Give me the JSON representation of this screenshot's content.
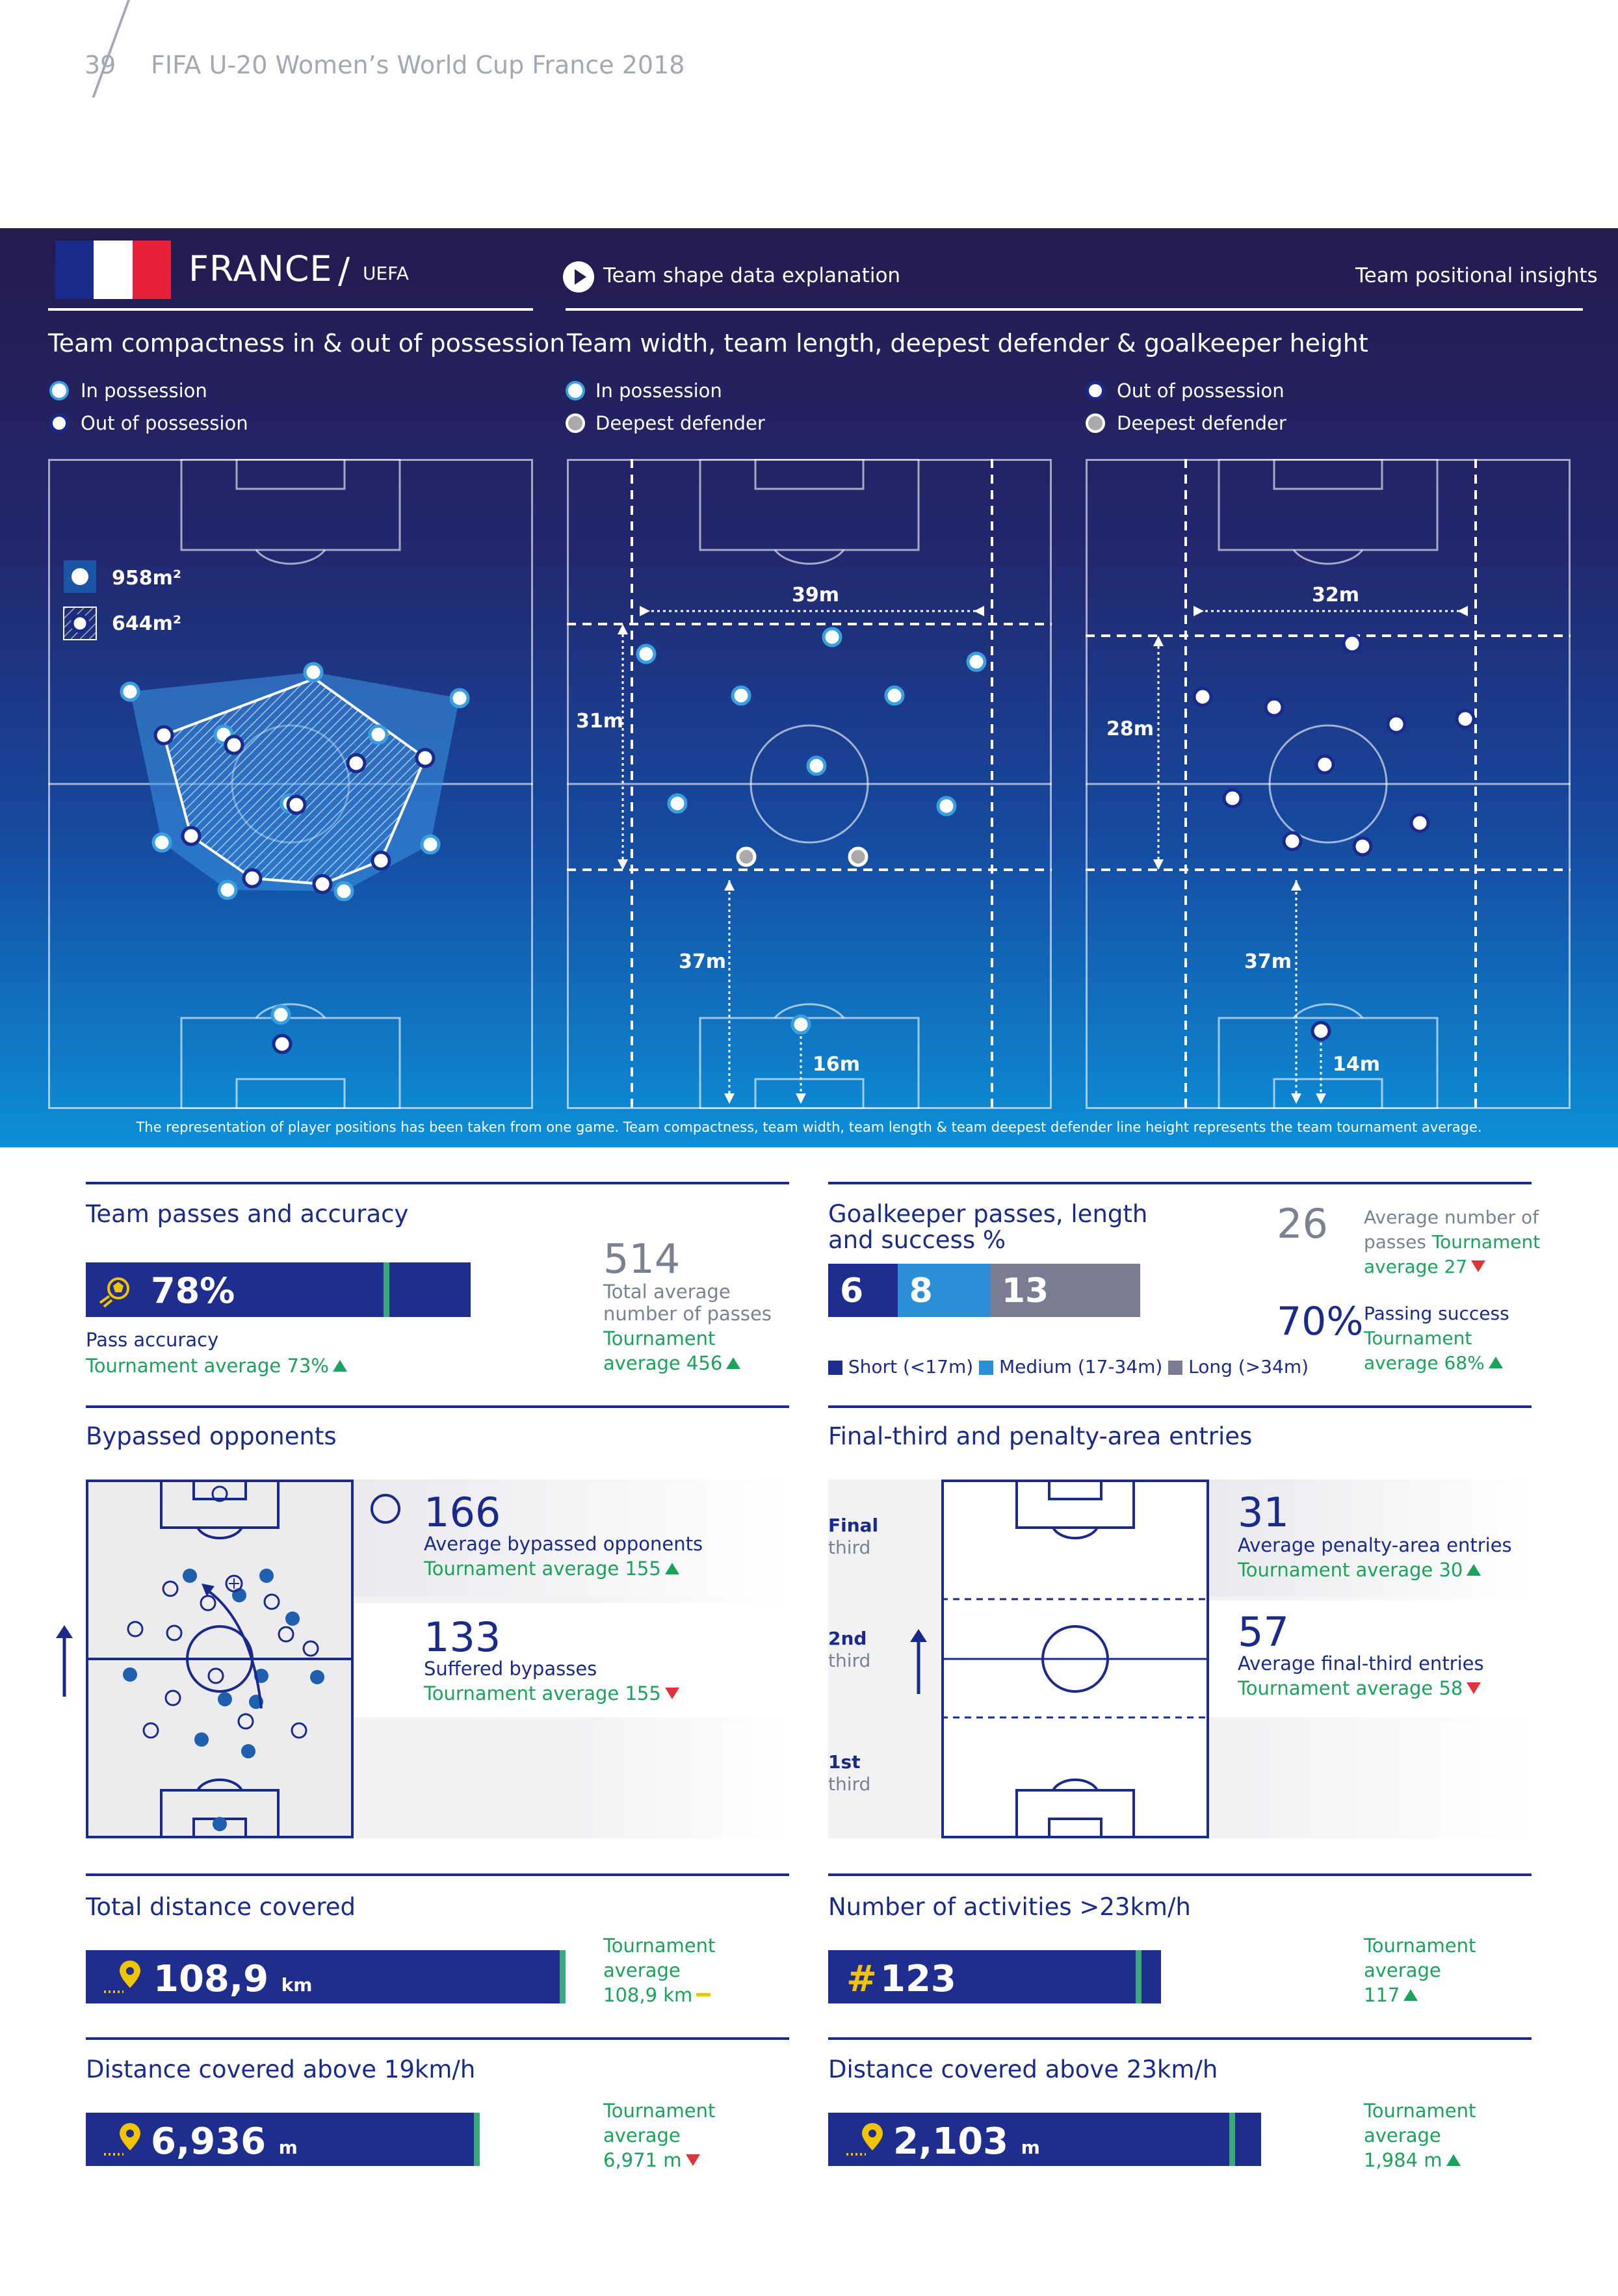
{
  "header": {
    "page_number": "39",
    "title": "FIFA U-20 Women’s World Cup France 2018"
  },
  "team": {
    "name": "FRANCE",
    "confederation": "UEFA",
    "flag_colors": [
      "#1a2a8c",
      "#ffffff",
      "#e8213a"
    ]
  },
  "links": {
    "shape_explanation": "Team shape data explanation",
    "positional_insights": "Team positional insights"
  },
  "panels": {
    "compactness": {
      "title": "Team compactness in & out of possession",
      "legend_in": "In possession",
      "legend_out": "Out of possession",
      "in_area": "958m²",
      "out_area": "644m²"
    },
    "shape": {
      "title": "Team width, team length, deepest defender & goalkeeper height",
      "legend_in": "In possession",
      "legend_out": "Out of possession",
      "legend_deepest": "Deepest defender",
      "in": {
        "width": "39m",
        "length": "31m",
        "deepest_height": "37m",
        "gk_height": "16m"
      },
      "out": {
        "width": "32m",
        "length": "28m",
        "deepest_height": "37m",
        "gk_height": "14m"
      }
    },
    "footnote": "The representation of player positions has been taken from one game. Team compactness, team width, team length & team deepest defender line height represents the team tournament average."
  },
  "passes": {
    "title": "Team passes and accuracy",
    "accuracy": "78%",
    "accuracy_value": 78,
    "accuracy_label": "Pass accuracy",
    "accuracy_avg": "Tournament average 73%",
    "total": "514",
    "total_label_1": "Total average",
    "total_label_2": "number of passes",
    "total_avg_1": "Tournament",
    "total_avg_2": "average 456"
  },
  "goalkeeper": {
    "title_1": "Goalkeeper passes, length",
    "title_2": "and success %",
    "short": "6",
    "medium": "8",
    "long": "13",
    "legend_short": "Short (<17m)",
    "legend_medium": "Medium (17-34m)",
    "legend_long": "Long (>34m)",
    "avg_passes": "26",
    "avg_passes_label_1": "Average number of",
    "avg_passes_label_2": "passes",
    "avg_passes_tour": "Tournament",
    "avg_passes_tour_2": "average 27",
    "success": "70%",
    "success_label": "Passing success",
    "success_tour_1": "Tournament",
    "success_tour_2": "average 68%"
  },
  "bypassed": {
    "title": "Bypassed opponents",
    "avg": "166",
    "avg_label": "Average bypassed opponents",
    "avg_tour": "Tournament average 155",
    "suffered": "133",
    "suffered_label": "Suffered bypasses",
    "suffered_tour": "Tournament average 155"
  },
  "entries": {
    "title": "Final-third and penalty-area entries",
    "final": "Final",
    "final_2": "third",
    "second": "2nd",
    "second_2": "third",
    "first": "1st",
    "first_2": "third",
    "penalty": "31",
    "penalty_label": "Average penalty-area entries",
    "penalty_tour": "Tournament average 30",
    "finalthird": "57",
    "finalthird_label": "Average final-third entries",
    "finalthird_tour": "Tournament average 58"
  },
  "distance": {
    "title": "Total distance covered",
    "value": "108,9",
    "unit": "km",
    "tour_1": "Tournament",
    "tour_2": "average",
    "tour_3": "108,9 km"
  },
  "activities": {
    "title": "Number of activities >23km/h",
    "symbol": "#",
    "value": "123",
    "tour_1": "Tournament",
    "tour_2": "average",
    "tour_3": "117"
  },
  "dist19": {
    "title": "Distance covered above 19km/h",
    "value": "6,936",
    "unit": "m",
    "tour_1": "Tournament",
    "tour_2": "average",
    "tour_3": "6,971 m"
  },
  "dist23": {
    "title": "Distance covered above 23km/h",
    "value": "2,103",
    "unit": "m",
    "tour_1": "Tournament",
    "tour_2": "average",
    "tour_3": "1,984 m"
  }
}
